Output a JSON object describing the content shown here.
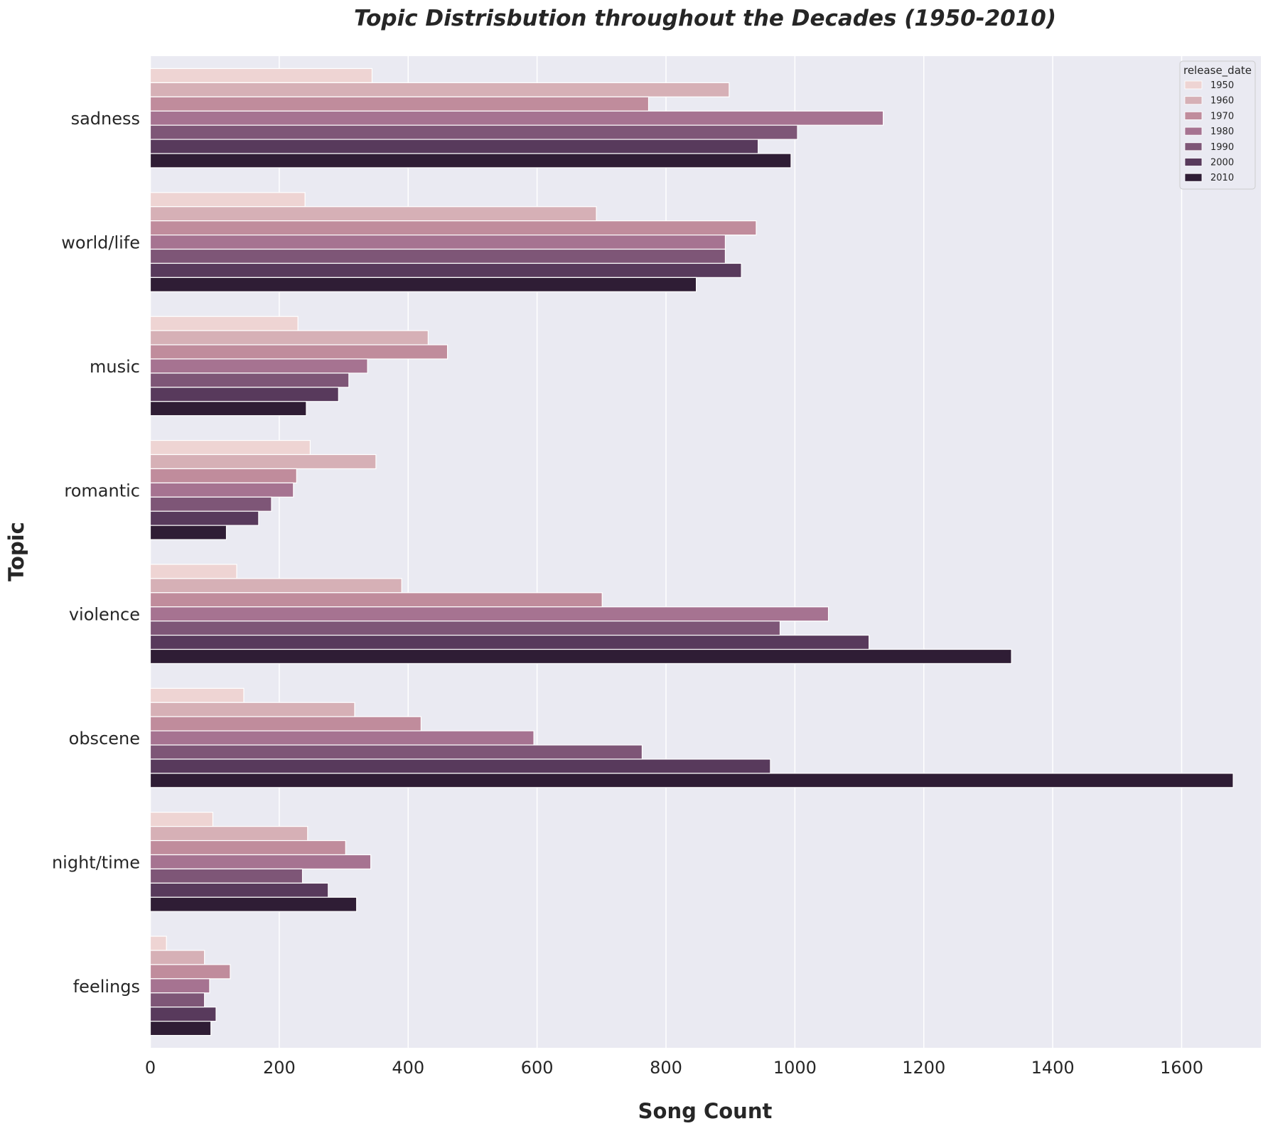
{
  "chart_data": {
    "type": "bar",
    "orientation": "horizontal",
    "title": "Topic Distrisbution throughout the Decades (1950-2010)",
    "xlabel": "Song Count",
    "ylabel": "Topic",
    "xlim": [
      0,
      1760
    ],
    "xticks": [
      0,
      200,
      400,
      600,
      800,
      1000,
      1200,
      1400,
      1600
    ],
    "grid": true,
    "legend_title": "release_date",
    "legend_position": "top-right",
    "categories": [
      "sadness",
      "world/life",
      "music",
      "romantic",
      "violence",
      "obscene",
      "night/time",
      "feelings"
    ],
    "series": [
      {
        "name": "1950",
        "color": "#eed4d3",
        "values": [
          344,
          240,
          229,
          248,
          134,
          145,
          97,
          25
        ]
      },
      {
        "name": "1960",
        "color": "#d6b0b6",
        "values": [
          898,
          692,
          431,
          350,
          390,
          317,
          244,
          84
        ]
      },
      {
        "name": "1970",
        "color": "#c08c9c",
        "values": [
          773,
          940,
          461,
          227,
          701,
          420,
          303,
          124
        ]
      },
      {
        "name": "1980",
        "color": "#a67391",
        "values": [
          1137,
          892,
          337,
          222,
          1052,
          595,
          342,
          92
        ]
      },
      {
        "name": "1990",
        "color": "#7e5677",
        "values": [
          1004,
          892,
          308,
          188,
          977,
          763,
          236,
          84
        ]
      },
      {
        "name": "2000",
        "color": "#583a5c",
        "values": [
          943,
          917,
          292,
          168,
          1115,
          962,
          276,
          102
        ]
      },
      {
        "name": "2010",
        "color": "#2f1d35",
        "values": [
          994,
          847,
          242,
          118,
          1336,
          1680,
          320,
          94
        ]
      }
    ]
  }
}
